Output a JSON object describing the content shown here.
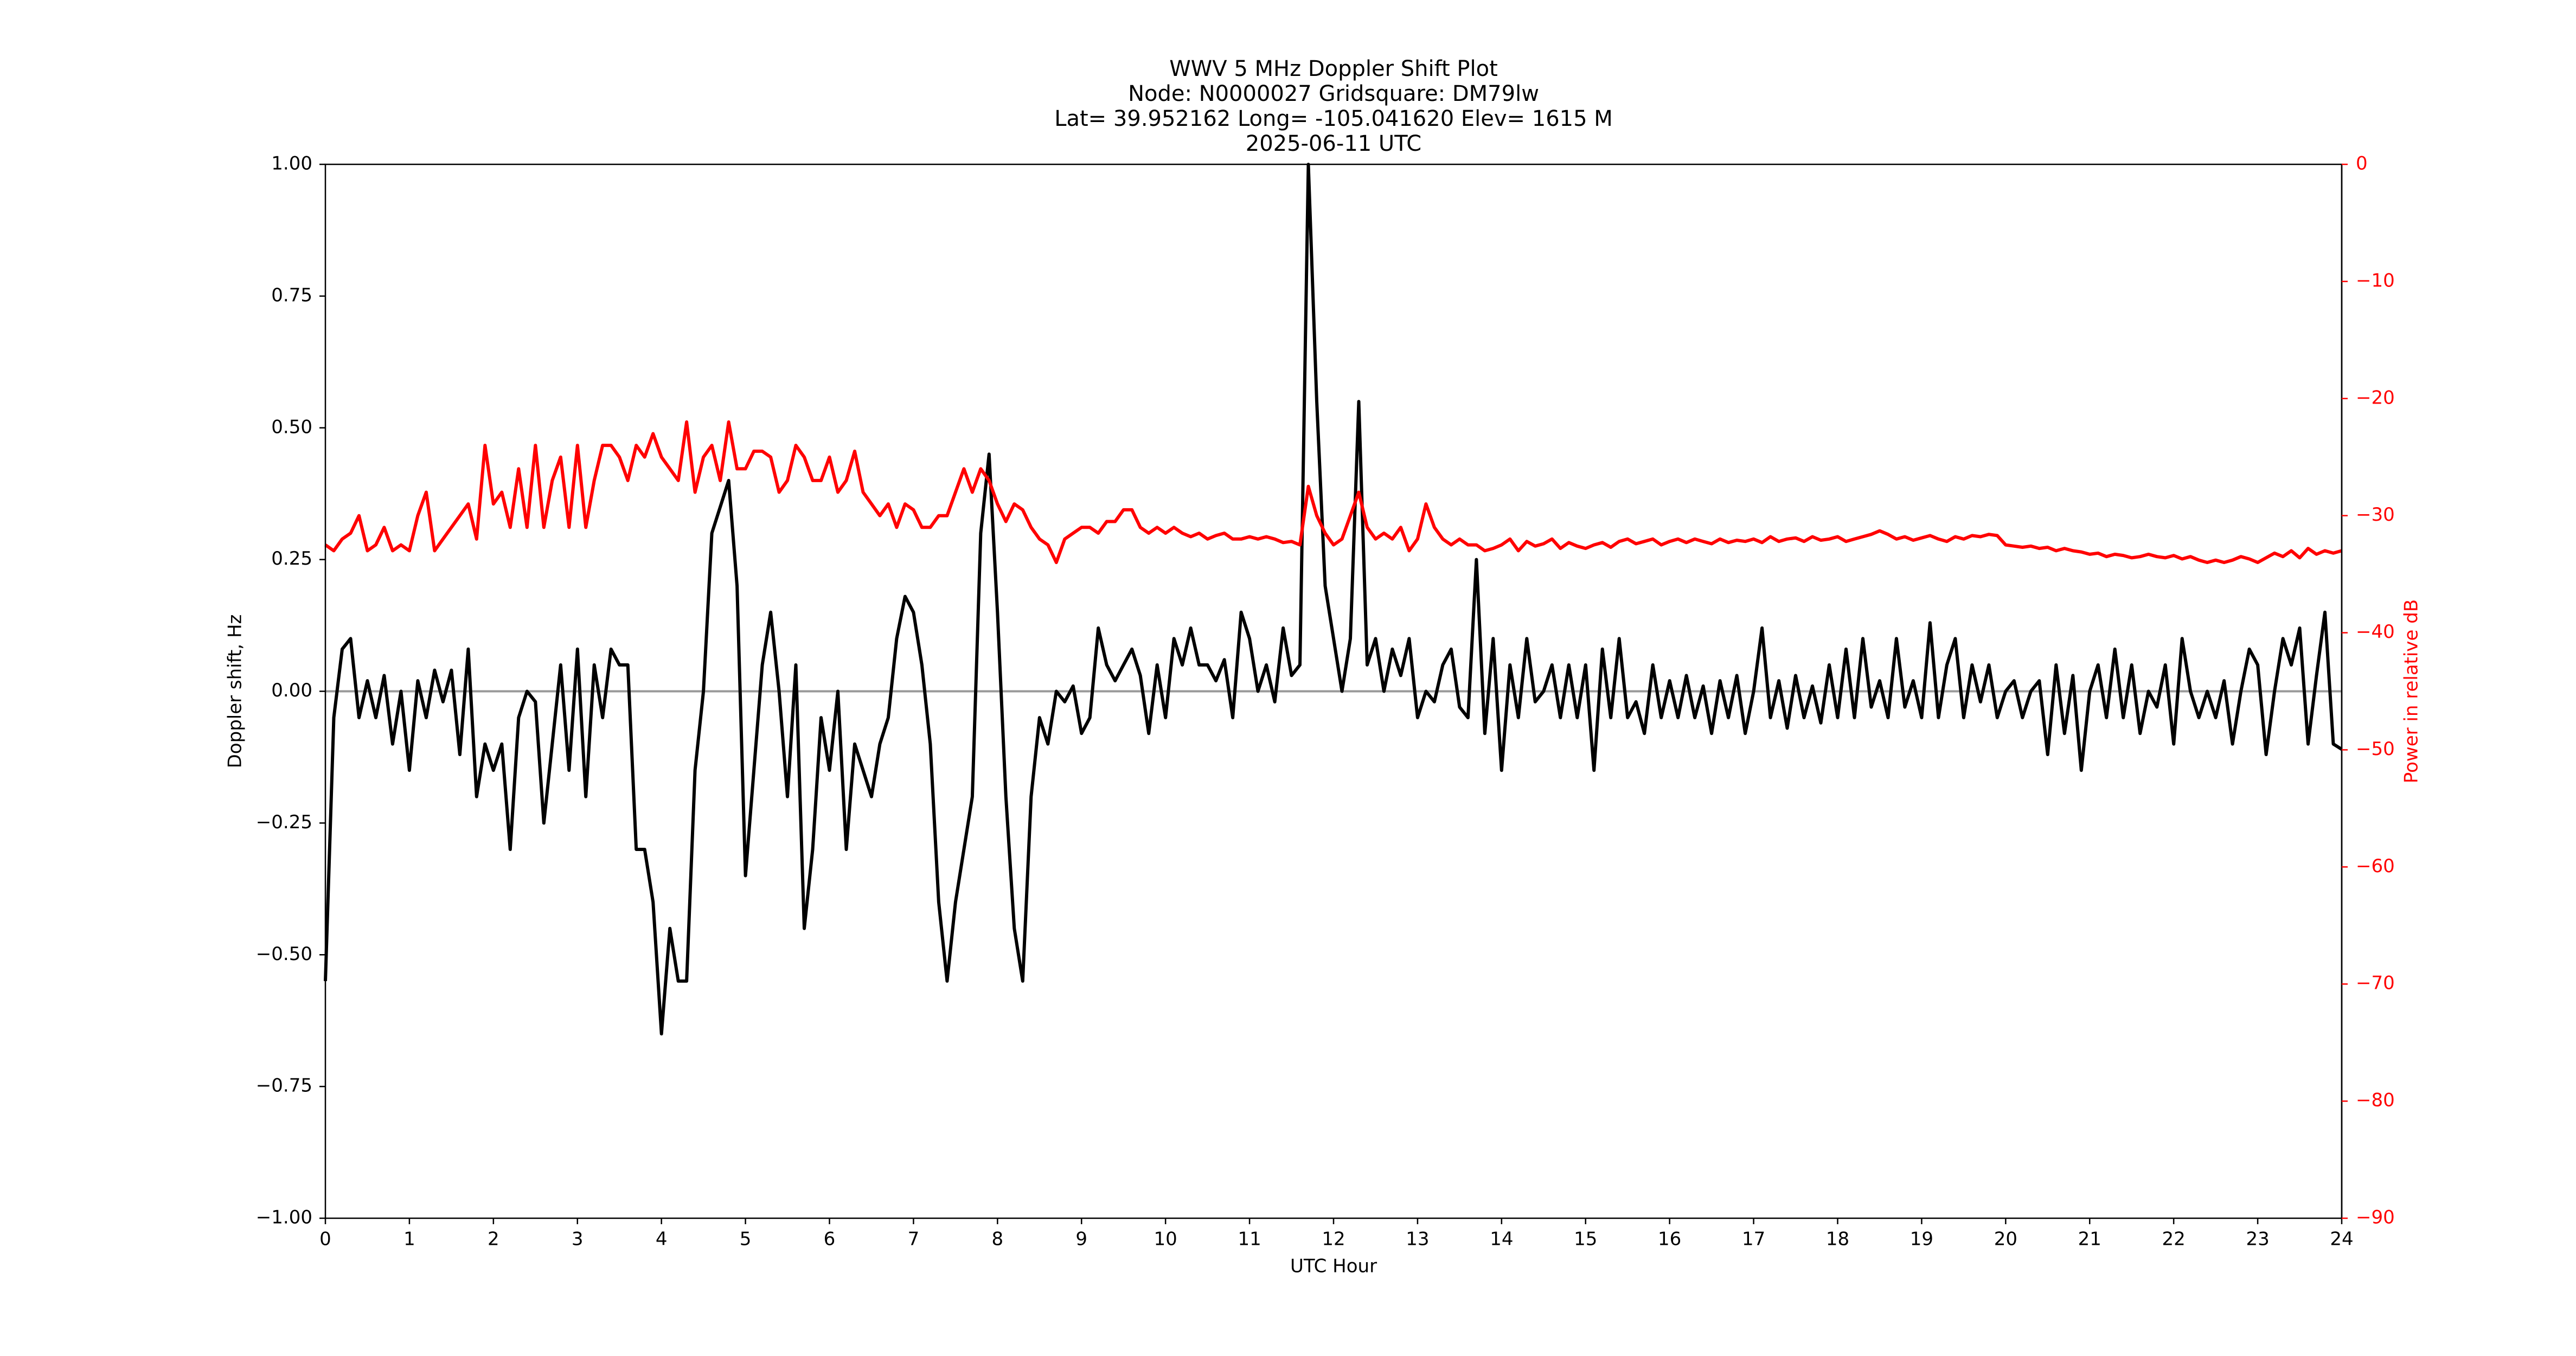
{
  "chart_data": {
    "type": "line",
    "title_lines": [
      "WWV 5 MHz Doppler Shift Plot",
      "Node:  N0000027     Gridsquare:  DM79lw",
      "Lat= 39.952162    Long= -105.041620    Elev= 1615 M",
      "2025-06-11  UTC"
    ],
    "xlabel": "UTC Hour",
    "ylabel": "Doppler shift, Hz",
    "y2label": "Power in relative dB",
    "xlim": [
      0,
      24
    ],
    "xticks": [
      0,
      1,
      2,
      3,
      4,
      5,
      6,
      7,
      8,
      9,
      10,
      11,
      12,
      13,
      14,
      15,
      16,
      17,
      18,
      19,
      20,
      21,
      22,
      23,
      24
    ],
    "ylim": [
      -1,
      1
    ],
    "yticks": [
      {
        "value": -1,
        "label": "−1.00"
      },
      {
        "value": -0.75,
        "label": "−0.75"
      },
      {
        "value": -0.5,
        "label": "−0.50"
      },
      {
        "value": -0.25,
        "label": "−0.25"
      },
      {
        "value": 0,
        "label": "0.00"
      },
      {
        "value": 0.25,
        "label": "0.25"
      },
      {
        "value": 0.5,
        "label": "0.50"
      },
      {
        "value": 0.75,
        "label": "0.75"
      },
      {
        "value": 1,
        "label": "1.00"
      }
    ],
    "y2lim": [
      -90,
      0
    ],
    "y2ticks": [
      {
        "value": -90,
        "label": "−90"
      },
      {
        "value": -80,
        "label": "−80"
      },
      {
        "value": -70,
        "label": "−70"
      },
      {
        "value": -60,
        "label": "−60"
      },
      {
        "value": -50,
        "label": "−50"
      },
      {
        "value": -40,
        "label": "−40"
      },
      {
        "value": -30,
        "label": "−30"
      },
      {
        "value": -20,
        "label": "−20"
      },
      {
        "value": -10,
        "label": "−10"
      },
      0
    ],
    "y2color": "#ff0000",
    "hlines": [
      0
    ],
    "hline_color": "#999999",
    "x": [
      0,
      0.1,
      0.2,
      0.3,
      0.4,
      0.5,
      0.6,
      0.7,
      0.8,
      0.9,
      1,
      1.1,
      1.2,
      1.3,
      1.4,
      1.5,
      1.6,
      1.7,
      1.8,
      1.9,
      2,
      2.1,
      2.2,
      2.3,
      2.4,
      2.5,
      2.6,
      2.7,
      2.8,
      2.9,
      3,
      3.1,
      3.2,
      3.3,
      3.4,
      3.5,
      3.6,
      3.7,
      3.8,
      3.9,
      4,
      4.1,
      4.2,
      4.3,
      4.4,
      4.5,
      4.6,
      4.7,
      4.8,
      4.9,
      5,
      5.1,
      5.2,
      5.3,
      5.4,
      5.5,
      5.6,
      5.7,
      5.8,
      5.9,
      6,
      6.1,
      6.2,
      6.3,
      6.4,
      6.5,
      6.6,
      6.7,
      6.8,
      6.9,
      7,
      7.1,
      7.2,
      7.3,
      7.4,
      7.5,
      7.6,
      7.7,
      7.8,
      7.9,
      8,
      8.1,
      8.2,
      8.3,
      8.4,
      8.5,
      8.6,
      8.7,
      8.8,
      8.9,
      9,
      9.1,
      9.2,
      9.3,
      9.4,
      9.5,
      9.6,
      9.7,
      9.8,
      9.9,
      10,
      10.1,
      10.2,
      10.3,
      10.4,
      10.5,
      10.6,
      10.7,
      10.8,
      10.9,
      11,
      11.1,
      11.2,
      11.3,
      11.4,
      11.5,
      11.6,
      11.7,
      11.8,
      11.9,
      12,
      12.1,
      12.2,
      12.3,
      12.4,
      12.5,
      12.6,
      12.7,
      12.8,
      12.9,
      13,
      13.1,
      13.2,
      13.3,
      13.4,
      13.5,
      13.6,
      13.7,
      13.8,
      13.9,
      14,
      14.1,
      14.2,
      14.3,
      14.4,
      14.5,
      14.6,
      14.7,
      14.8,
      14.9,
      15,
      15.1,
      15.2,
      15.3,
      15.4,
      15.5,
      15.6,
      15.7,
      15.8,
      15.9,
      16,
      16.1,
      16.2,
      16.3,
      16.4,
      16.5,
      16.6,
      16.7,
      16.8,
      16.9,
      17,
      17.1,
      17.2,
      17.3,
      17.4,
      17.5,
      17.6,
      17.7,
      17.8,
      17.9,
      18,
      18.1,
      18.2,
      18.3,
      18.4,
      18.5,
      18.6,
      18.7,
      18.8,
      18.9,
      19,
      19.1,
      19.2,
      19.3,
      19.4,
      19.5,
      19.6,
      19.7,
      19.8,
      19.9,
      20,
      20.1,
      20.2,
      20.3,
      20.4,
      20.5,
      20.6,
      20.7,
      20.8,
      20.9,
      21,
      21.1,
      21.2,
      21.3,
      21.4,
      21.5,
      21.6,
      21.7,
      21.8,
      21.9,
      22,
      22.1,
      22.2,
      22.3,
      22.4,
      22.5,
      22.6,
      22.7,
      22.8,
      22.9,
      23,
      23.1,
      23.2,
      23.3,
      23.4,
      23.5,
      23.6,
      23.7,
      23.8,
      23.9,
      24
    ],
    "series": [
      {
        "color": "#000000",
        "values": [
          -0.55,
          -0.05,
          0.08,
          0.1,
          -0.05,
          0.02,
          -0.05,
          0.03,
          -0.1,
          0,
          -0.15,
          0.02,
          -0.05,
          0.04,
          -0.02,
          0.04,
          -0.12,
          0.08,
          -0.2,
          -0.1,
          -0.15,
          -0.1,
          -0.3,
          -0.05,
          0,
          -0.02,
          -0.25,
          -0.1,
          0.05,
          -0.15,
          0.08,
          -0.2,
          0.05,
          -0.05,
          0.08,
          0.05,
          0.05,
          -0.3,
          -0.3,
          -0.4,
          -0.65,
          -0.45,
          -0.55,
          -0.55,
          -0.15,
          0,
          0.3,
          0.35,
          0.4,
          0.2,
          -0.35,
          -0.15,
          0.05,
          0.15,
          0,
          -0.2,
          0.05,
          -0.45,
          -0.3,
          -0.05,
          -0.15,
          0,
          -0.3,
          -0.1,
          -0.15,
          -0.2,
          -0.1,
          -0.05,
          0.1,
          0.18,
          0.15,
          0.05,
          -0.1,
          -0.4,
          -0.55,
          -0.4,
          -0.3,
          -0.2,
          0.3,
          0.45,
          0.15,
          -0.2,
          -0.45,
          -0.55,
          -0.2,
          -0.05,
          -0.1,
          0,
          -0.02,
          0.01,
          -0.08,
          -0.05,
          0.12,
          0.05,
          0.02,
          0.05,
          0.08,
          0.03,
          -0.08,
          0.05,
          -0.05,
          0.1,
          0.05,
          0.12,
          0.05,
          0.05,
          0.02,
          0.06,
          -0.05,
          0.15,
          0.1,
          0,
          0.05,
          -0.02,
          0.12,
          0.03,
          0.05,
          1,
          0.55,
          0.2,
          0.1,
          0,
          0.1,
          0.55,
          0.05,
          0.1,
          0,
          0.08,
          0.03,
          0.1,
          -0.05,
          0,
          -0.02,
          0.05,
          0.08,
          -0.03,
          -0.05,
          0.25,
          -0.08,
          0.1,
          -0.15,
          0.05,
          -0.05,
          0.1,
          -0.02,
          0,
          0.05,
          -0.05,
          0.05,
          -0.05,
          0.05,
          -0.15,
          0.08,
          -0.05,
          0.1,
          -0.05,
          -0.02,
          -0.08,
          0.05,
          -0.05,
          0.02,
          -0.05,
          0.03,
          -0.05,
          0.01,
          -0.08,
          0.02,
          -0.05,
          0.03,
          -0.08,
          0,
          0.12,
          -0.05,
          0.02,
          -0.07,
          0.03,
          -0.05,
          0.01,
          -0.06,
          0.05,
          -0.05,
          0.08,
          -0.05,
          0.1,
          -0.03,
          0.02,
          -0.05,
          0.1,
          -0.03,
          0.02,
          -0.05,
          0.13,
          -0.05,
          0.05,
          0.1,
          -0.05,
          0.05,
          -0.02,
          0.05,
          -0.05,
          0,
          0.02,
          -0.05,
          0,
          0.02,
          -0.12,
          0.05,
          -0.08,
          0.03,
          -0.15,
          0,
          0.05,
          -0.05,
          0.08,
          -0.05,
          0.05,
          -0.08,
          0,
          -0.03,
          0.05,
          -0.1,
          0.1,
          0,
          -0.05,
          0,
          -0.05,
          0.02,
          -0.1,
          0,
          0.08,
          0.05,
          -0.12,
          0,
          0.1,
          0.05,
          0.12,
          -0.1,
          0.03,
          0.15,
          -0.1,
          -0.11
        ]
      },
      {
        "color": "#ff0000",
        "axis": "y2",
        "values": [
          -32.5,
          -33,
          -32,
          -31.5,
          -30,
          -33,
          -32.5,
          -31,
          -33,
          -32.5,
          -33,
          -30,
          -28,
          -33,
          -32,
          -31,
          -30,
          -29,
          -32,
          -24,
          -29,
          -28,
          -31,
          -26,
          -31,
          -24,
          -31,
          -27,
          -25,
          -31,
          -24,
          -31,
          -27,
          -24,
          -24,
          -25,
          -27,
          -24,
          -25,
          -23,
          -25,
          -26,
          -27,
          -22,
          -28,
          -25,
          -24,
          -27,
          -22,
          -26,
          -26,
          -24.5,
          -24.5,
          -25,
          -28,
          -27,
          -24,
          -25,
          -27,
          -27,
          -25,
          -28,
          -27,
          -24.5,
          -28,
          -29,
          -30,
          -29,
          -31,
          -29,
          -29.5,
          -31,
          -31,
          -30,
          -30,
          -28,
          -26,
          -28,
          -26,
          -27,
          -29,
          -30.5,
          -29,
          -29.5,
          -31,
          -32,
          -32.5,
          -34,
          -32,
          -31.5,
          -31,
          -31,
          -31.5,
          -30.5,
          -30.5,
          -29.5,
          -29.5,
          -31,
          -31.5,
          -31,
          -31.5,
          -31,
          -31.5,
          -31.8,
          -31.5,
          -32,
          -31.7,
          -31.5,
          -32,
          -32,
          -31.8,
          -32,
          -31.8,
          -32,
          -32.3,
          -32.2,
          -32.5,
          -27.5,
          -30,
          -31.5,
          -32.5,
          -32,
          -30,
          -28,
          -31,
          -32,
          -31.5,
          -32,
          -31,
          -33,
          -32,
          -29,
          -31,
          -32,
          -32.5,
          -32,
          -32.5,
          -32.5,
          -33,
          -32.8,
          -32.5,
          -32,
          -33,
          -32.2,
          -32.6,
          -32.4,
          -32,
          -32.8,
          -32.3,
          -32.6,
          -32.8,
          -32.5,
          -32.3,
          -32.7,
          -32.2,
          -32,
          -32.4,
          -32.2,
          -32,
          -32.5,
          -32.2,
          -32,
          -32.3,
          -32,
          -32.2,
          -32.4,
          -32,
          -32.3,
          -32.1,
          -32.2,
          -32,
          -32.3,
          -31.8,
          -32.2,
          -32,
          -31.9,
          -32.2,
          -31.8,
          -32.1,
          -32,
          -31.8,
          -32.2,
          -32,
          -31.8,
          -31.6,
          -31.3,
          -31.6,
          -32,
          -31.8,
          -32.1,
          -31.9,
          -31.7,
          -32,
          -32.2,
          -31.8,
          -32,
          -31.7,
          -31.8,
          -31.6,
          -31.7,
          -32.5,
          -32.6,
          -32.7,
          -32.6,
          -32.8,
          -32.7,
          -33,
          -32.8,
          -33,
          -33.1,
          -33.3,
          -33.2,
          -33.5,
          -33.3,
          -33.4,
          -33.6,
          -33.5,
          -33.3,
          -33.5,
          -33.6,
          -33.4,
          -33.7,
          -33.5,
          -33.8,
          -34,
          -33.8,
          -34,
          -33.8,
          -33.5,
          -33.7,
          -34,
          -33.6,
          -33.2,
          -33.5,
          -33,
          -33.6,
          -32.8,
          -33.3,
          -33,
          -33.2,
          -33
        ]
      }
    ]
  }
}
